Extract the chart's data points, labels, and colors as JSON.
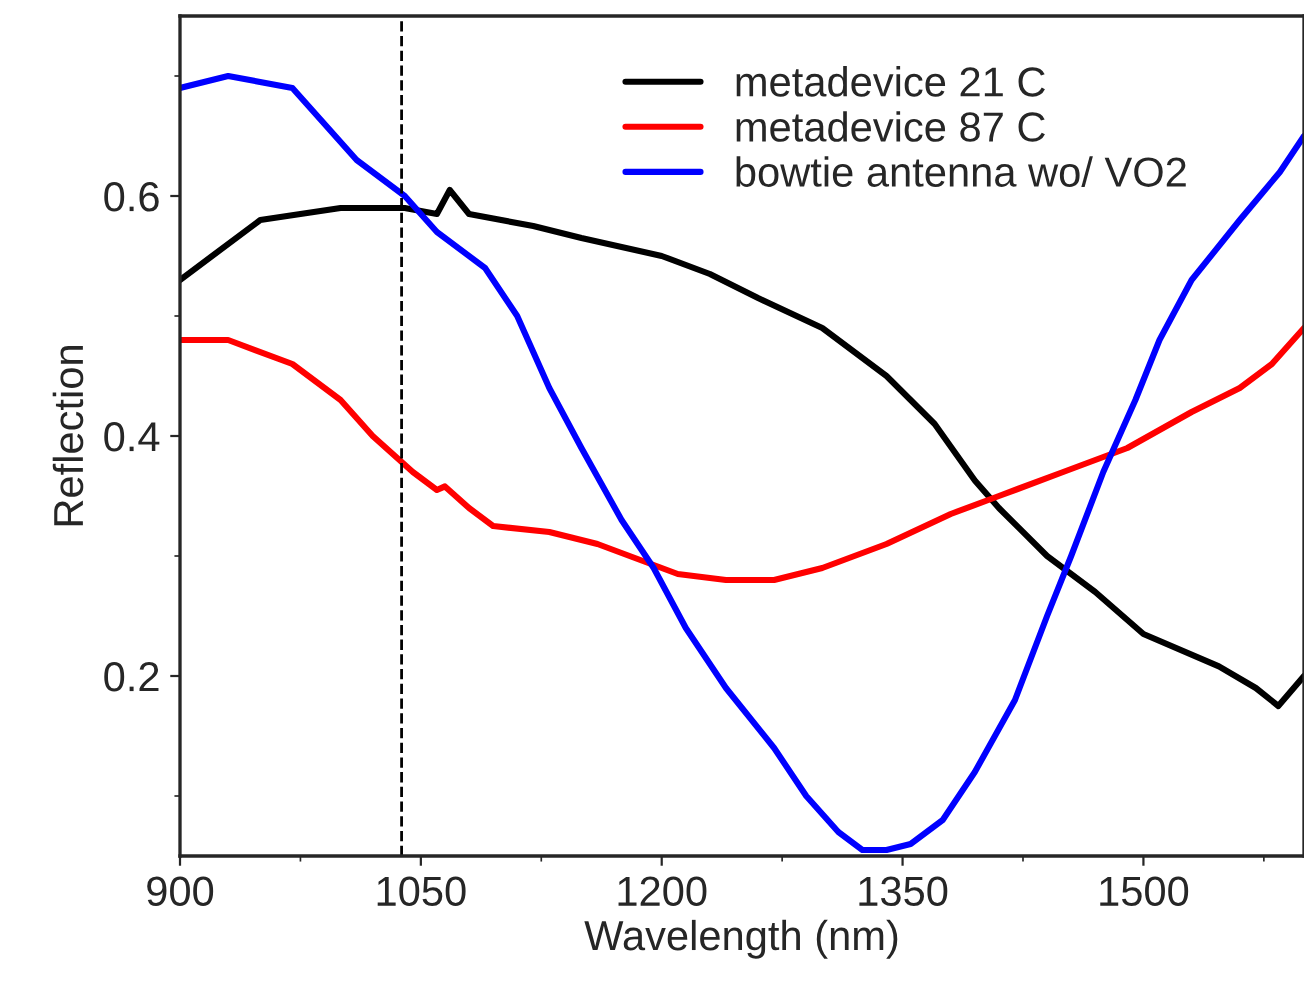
{
  "chart_data": {
    "type": "line",
    "xlabel": "Wavelength (nm)",
    "ylabel": "Reflection",
    "xlim": [
      900,
      1600
    ],
    "xticks": [
      900,
      1050,
      1200,
      1350,
      1500
    ],
    "ylim": [
      0.05,
      0.75
    ],
    "yticks": [
      0.2,
      0.4,
      0.6
    ],
    "grid": false,
    "legend": "top right",
    "line_style": "solid",
    "ref_lines": [
      {
        "axis": "x",
        "value": 1038,
        "color": "#000000",
        "line_style": "dashed"
      }
    ],
    "series": [
      {
        "name": "metadevice 21 C",
        "color": "#000000",
        "x": [
          900,
          950,
          1000,
          1040,
          1060,
          1068,
          1080,
          1120,
          1150,
          1200,
          1230,
          1260,
          1300,
          1340,
          1370,
          1395,
          1410,
          1440,
          1470,
          1500,
          1547,
          1570,
          1584,
          1600
        ],
        "values": [
          0.53,
          0.58,
          0.59,
          0.59,
          0.585,
          0.605,
          0.585,
          0.575,
          0.565,
          0.55,
          0.535,
          0.515,
          0.49,
          0.45,
          0.41,
          0.363,
          0.34,
          0.3,
          0.27,
          0.235,
          0.208,
          0.19,
          0.175,
          0.2
        ]
      },
      {
        "name": "metadevice 87 C",
        "color": "#ff0000",
        "x": [
          900,
          930,
          970,
          1000,
          1020,
          1045,
          1060,
          1065,
          1080,
          1095,
          1130,
          1160,
          1190,
          1210,
          1240,
          1270,
          1300,
          1340,
          1380,
          1410,
          1450,
          1490,
          1530,
          1560,
          1580,
          1600
        ],
        "values": [
          0.48,
          0.48,
          0.46,
          0.43,
          0.4,
          0.37,
          0.355,
          0.358,
          0.34,
          0.325,
          0.32,
          0.31,
          0.295,
          0.285,
          0.28,
          0.28,
          0.29,
          0.31,
          0.335,
          0.35,
          0.37,
          0.39,
          0.42,
          0.44,
          0.46,
          0.49
        ]
      },
      {
        "name": "bowtie antenna wo/ VO2",
        "color": "#0000ff",
        "x": [
          900,
          930,
          970,
          990,
          1010,
          1040,
          1060,
          1090,
          1110,
          1130,
          1150,
          1175,
          1195,
          1215,
          1240,
          1270,
          1290,
          1310,
          1325,
          1340,
          1355,
          1375,
          1395,
          1420,
          1440,
          1455,
          1475,
          1495,
          1510,
          1530,
          1560,
          1585,
          1600
        ],
        "values": [
          0.69,
          0.7,
          0.69,
          0.66,
          0.63,
          0.6,
          0.57,
          0.54,
          0.5,
          0.44,
          0.39,
          0.33,
          0.29,
          0.24,
          0.19,
          0.14,
          0.1,
          0.07,
          0.055,
          0.055,
          0.06,
          0.08,
          0.12,
          0.18,
          0.25,
          0.3,
          0.37,
          0.43,
          0.48,
          0.53,
          0.58,
          0.62,
          0.65
        ]
      }
    ]
  }
}
